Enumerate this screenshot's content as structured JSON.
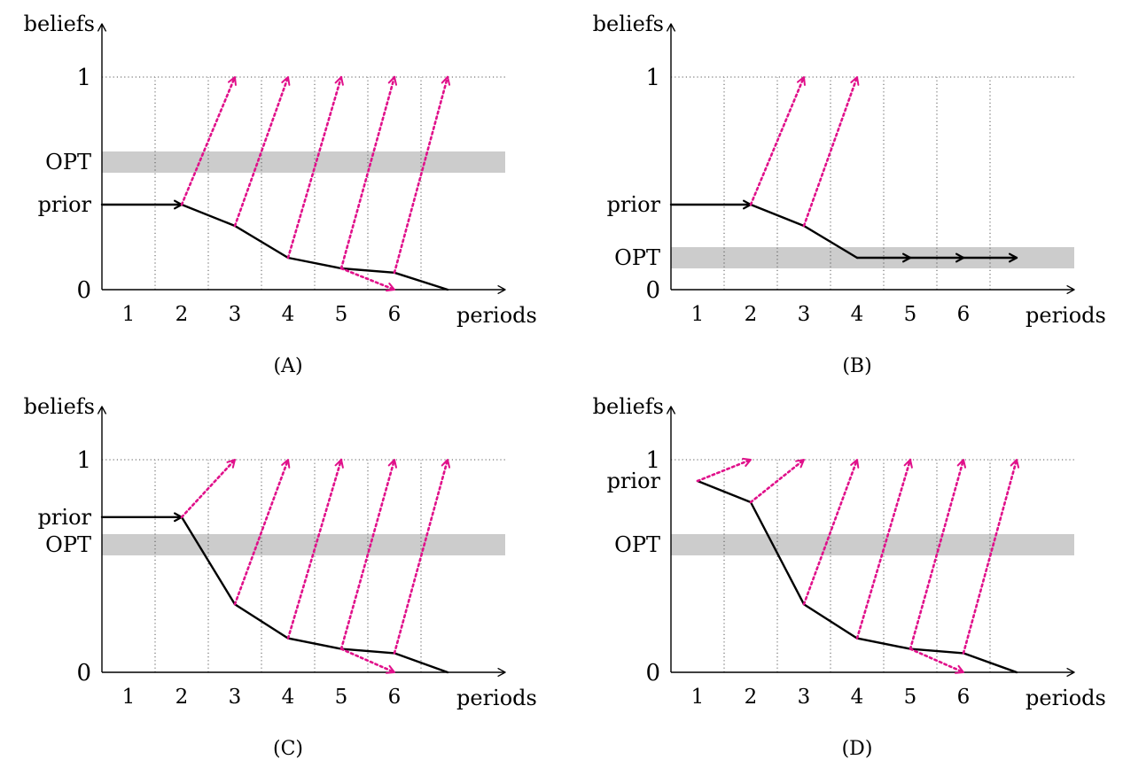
{
  "chart_data": [
    {
      "type": "line",
      "caption": "(A)",
      "xlabel": "periods",
      "ylabel": "beliefs",
      "x_ticks": [
        "1",
        "2",
        "3",
        "4",
        "5",
        "6"
      ],
      "y_labels": {
        "one": "1",
        "opt": "OPT",
        "prior": "prior",
        "zero": "0"
      },
      "y_levels": {
        "opt_band": [
          0.55,
          0.65
        ],
        "prior": 0.4
      },
      "ylim": [
        0,
        1
      ],
      "belief_path": [
        [
          1.5,
          0.4
        ],
        [
          2.5,
          0.3
        ],
        [
          3.5,
          0.15
        ],
        [
          4.5,
          0.1
        ],
        [
          5.5,
          0.08
        ],
        [
          6.5,
          0.0
        ]
      ],
      "dotted_jumps": [
        {
          "from": [
            1.5,
            0.4
          ],
          "to": [
            2.5,
            1.0
          ]
        },
        {
          "from": [
            2.5,
            0.3
          ],
          "to": [
            3.5,
            1.0
          ]
        },
        {
          "from": [
            3.5,
            0.15
          ],
          "to": [
            4.5,
            1.0
          ]
        },
        {
          "from": [
            4.5,
            0.1
          ],
          "to": [
            5.5,
            1.0
          ]
        },
        {
          "from": [
            5.5,
            0.08
          ],
          "to": [
            6.5,
            1.0
          ]
        },
        {
          "from": [
            4.5,
            0.1
          ],
          "to": [
            5.5,
            0.0
          ]
        }
      ]
    },
    {
      "type": "line",
      "caption": "(B)",
      "xlabel": "periods",
      "ylabel": "beliefs",
      "x_ticks": [
        "1",
        "2",
        "3",
        "4",
        "5",
        "6"
      ],
      "y_labels": {
        "one": "1",
        "opt": "OPT",
        "prior": "prior",
        "zero": "0"
      },
      "y_levels": {
        "opt_band": [
          0.1,
          0.2
        ],
        "prior": 0.4
      },
      "ylim": [
        0,
        1
      ],
      "belief_path": [
        [
          1.5,
          0.4
        ],
        [
          2.5,
          0.3
        ],
        [
          3.5,
          0.15
        ],
        [
          4.5,
          0.15
        ],
        [
          5.5,
          0.15
        ],
        [
          6.5,
          0.15
        ]
      ],
      "dotted_jumps": [
        {
          "from": [
            1.5,
            0.4
          ],
          "to": [
            2.5,
            1.0
          ]
        },
        {
          "from": [
            2.5,
            0.3
          ],
          "to": [
            3.5,
            1.0
          ]
        }
      ]
    },
    {
      "type": "line",
      "caption": "(C)",
      "xlabel": "periods",
      "ylabel": "beliefs",
      "x_ticks": [
        "1",
        "2",
        "3",
        "4",
        "5",
        "6"
      ],
      "y_labels": {
        "one": "1",
        "opt": "OPT",
        "prior": "prior",
        "zero": "0"
      },
      "y_levels": {
        "opt_band": [
          0.55,
          0.65
        ],
        "prior": 0.73
      },
      "ylim": [
        0,
        1
      ],
      "belief_path": [
        [
          1.5,
          0.73
        ],
        [
          2.5,
          0.32
        ],
        [
          3.5,
          0.16
        ],
        [
          4.5,
          0.11
        ],
        [
          5.5,
          0.09
        ],
        [
          6.5,
          0.0
        ]
      ],
      "dotted_jumps": [
        {
          "from": [
            1.5,
            0.73
          ],
          "to": [
            2.5,
            1.0
          ]
        },
        {
          "from": [
            2.5,
            0.32
          ],
          "to": [
            3.5,
            1.0
          ]
        },
        {
          "from": [
            3.5,
            0.16
          ],
          "to": [
            4.5,
            1.0
          ]
        },
        {
          "from": [
            4.5,
            0.11
          ],
          "to": [
            5.5,
            1.0
          ]
        },
        {
          "from": [
            5.5,
            0.09
          ],
          "to": [
            6.5,
            1.0
          ]
        },
        {
          "from": [
            4.5,
            0.11
          ],
          "to": [
            5.5,
            0.0
          ]
        }
      ]
    },
    {
      "type": "line",
      "caption": "(D)",
      "xlabel": "periods",
      "ylabel": "beliefs",
      "x_ticks": [
        "1",
        "2",
        "3",
        "4",
        "5",
        "6"
      ],
      "y_labels": {
        "one": "1",
        "opt": "OPT",
        "prior": "prior",
        "zero": "0"
      },
      "y_levels": {
        "opt_band": [
          0.55,
          0.65
        ],
        "prior": 0.9
      },
      "ylim": [
        0,
        1
      ],
      "belief_path": [
        [
          0.5,
          0.9
        ],
        [
          1.5,
          0.8
        ],
        [
          2.5,
          0.32
        ],
        [
          3.5,
          0.16
        ],
        [
          4.5,
          0.11
        ],
        [
          5.5,
          0.09
        ],
        [
          6.5,
          0.0
        ]
      ],
      "dotted_jumps": [
        {
          "from": [
            0.5,
            0.9
          ],
          "to": [
            1.5,
            1.0
          ]
        },
        {
          "from": [
            1.5,
            0.8
          ],
          "to": [
            2.5,
            1.0
          ]
        },
        {
          "from": [
            2.5,
            0.32
          ],
          "to": [
            3.5,
            1.0
          ]
        },
        {
          "from": [
            3.5,
            0.16
          ],
          "to": [
            4.5,
            1.0
          ]
        },
        {
          "from": [
            4.5,
            0.11
          ],
          "to": [
            5.5,
            1.0
          ]
        },
        {
          "from": [
            5.5,
            0.09
          ],
          "to": [
            6.5,
            1.0
          ]
        },
        {
          "from": [
            4.5,
            0.11
          ],
          "to": [
            5.5,
            0.0
          ]
        }
      ]
    }
  ],
  "colors": {
    "axis": "#000000",
    "band": "#cccccc",
    "grid": "#555555",
    "jump": "#e0108a"
  }
}
